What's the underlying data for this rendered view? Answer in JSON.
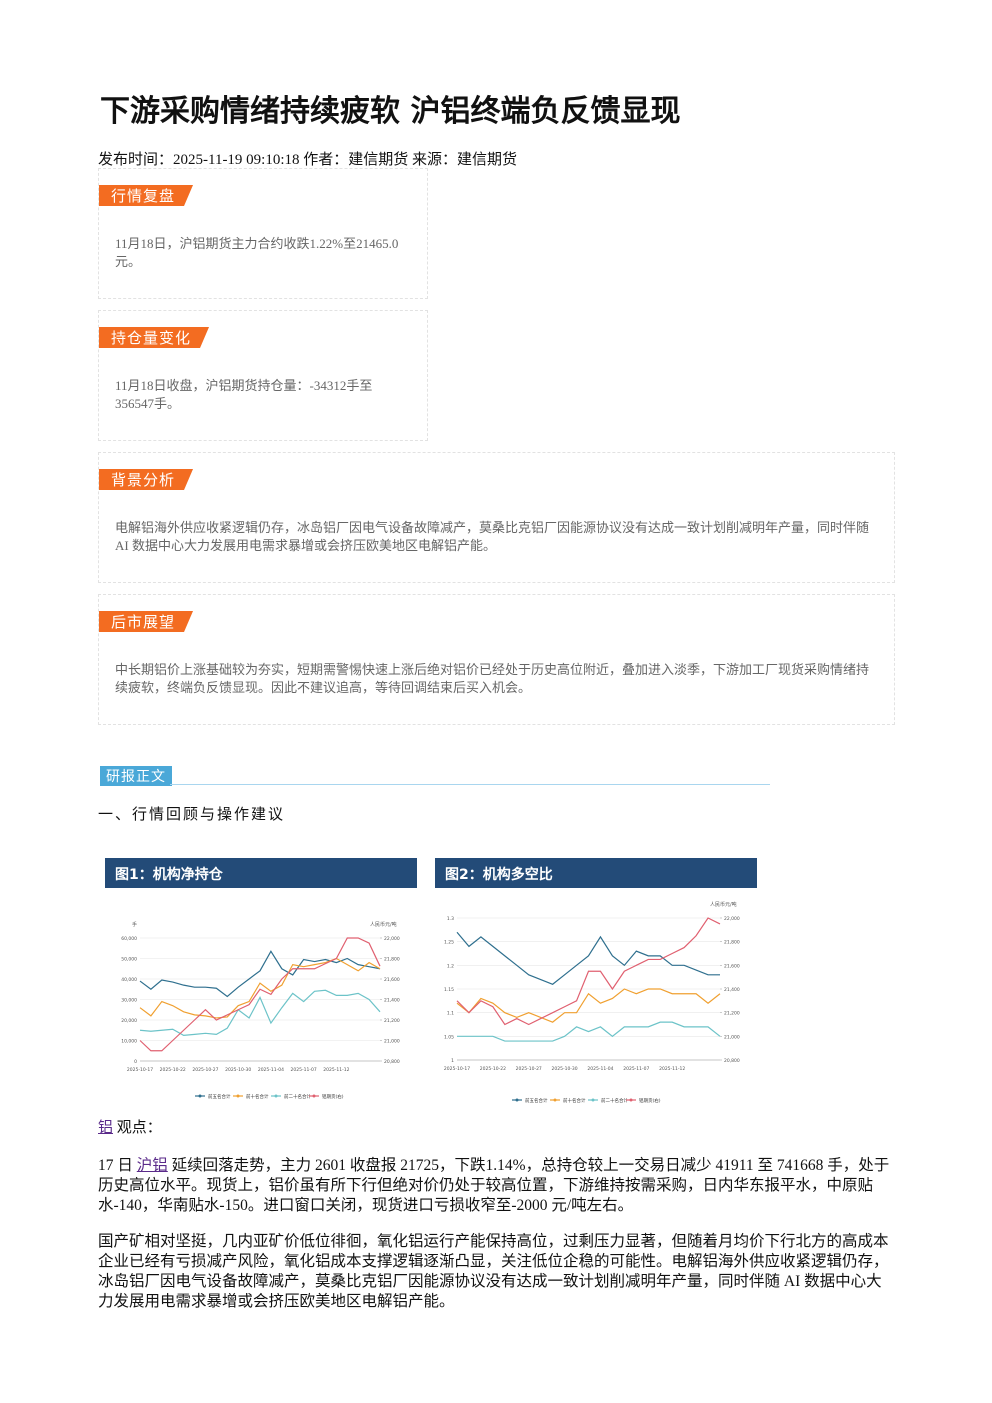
{
  "header": {
    "title": "下游采购情绪持续疲软 沪铝终端负反馈显现",
    "meta": "发布时间：2025-11-19 09:10:18 作者：建信期货 来源：建信期货"
  },
  "boxes": [
    {
      "tag": "行情复盘",
      "text": "11月18日，沪铝期货主力合约收跌1.22%至21465.0元。"
    },
    {
      "tag": "持仓量变化",
      "text": "11月18日收盘，沪铝期货持仓量：-34312手至356547手。"
    },
    {
      "tag": "背景分析",
      "text": "电解铝海外供应收紧逻辑仍存，冰岛铝厂因电气设备故障减产，莫桑比克铝厂因能源协议没有达成一致计划削减明年产量，同时伴随 AI 数据中心大力发展用电需求暴增或会挤压欧美地区电解铝产能。"
    },
    {
      "tag": "后市展望",
      "text": "中长期铝价上涨基础较为夯实，短期需警惕快速上涨后绝对铝价已经处于历史高位附近，叠加进入淡季，下游加工厂现货采购情绪持续疲软，终端负反馈显现。因此不建议追高，等待回调结束后买入机会。"
    }
  ],
  "body": {
    "tag": "研报正文",
    "heading": "一、行情回顾与操作建议"
  },
  "chart_data": [
    {
      "type": "line",
      "title": "图1：机构净持仓",
      "y_label": "手",
      "y2_label": "人民币元/吨",
      "categories": [
        "2025-10-17",
        null,
        null,
        "2025-10-22",
        null,
        null,
        "2025-10-27",
        null,
        null,
        "2025-10-30",
        null,
        null,
        "2025-11-04",
        null,
        null,
        "2025-11-07",
        null,
        null,
        "2025-11-12",
        null,
        null,
        null,
        null
      ],
      "ylim": [
        0,
        60000
      ],
      "yticks": [
        0,
        {
          "value": 10000,
          "label": "10,000"
        },
        {
          "value": 20000,
          "label": "20,000"
        },
        {
          "value": 30000,
          "label": "30,000"
        },
        {
          "value": 40000,
          "label": "40,000"
        },
        {
          "value": 50000,
          "label": "50,000"
        },
        {
          "value": 60000,
          "label": "60,000"
        }
      ],
      "y2lim": [
        20800,
        22000
      ],
      "y2ticks": [
        {
          "value": 20800,
          "label": "20,800"
        },
        {
          "value": 21000,
          "label": "21,000"
        },
        {
          "value": 21200,
          "label": "21,200"
        },
        {
          "value": 21400,
          "label": "21,400"
        },
        {
          "value": 21600,
          "label": "21,600"
        },
        {
          "value": 21800,
          "label": "21,800"
        },
        {
          "value": 22000,
          "label": "22,000"
        }
      ],
      "series": [
        {
          "name": "前五名合计",
          "color": "#2e6f8e",
          "values": [
            39000,
            35000,
            39500,
            38500,
            37000,
            36000,
            36000,
            35500,
            31500,
            36000,
            40000,
            44000,
            53500,
            45000,
            42000,
            49500,
            48500,
            49500,
            48000,
            50000,
            47000,
            46000,
            45000
          ]
        },
        {
          "name": "前十名合计",
          "color": "#f0a030",
          "values": [
            26000,
            22000,
            29000,
            27000,
            24000,
            22500,
            22000,
            21000,
            21500,
            27000,
            29000,
            38000,
            34000,
            37000,
            47000,
            46000,
            47000,
            48000,
            50000,
            47000,
            44000,
            48000,
            45000
          ]
        },
        {
          "name": "前二十名合计",
          "color": "#6cc3c8",
          "values": [
            15000,
            14500,
            15000,
            15500,
            12500,
            13000,
            13500,
            13000,
            16000,
            25000,
            21000,
            31000,
            18500,
            26000,
            33000,
            29000,
            34000,
            34500,
            32000,
            32000,
            33000,
            30000,
            24000
          ]
        },
        {
          "name": "铝期货(右)",
          "color": "#e06070",
          "axis": "y2",
          "values": [
            21000,
            20900,
            20900,
            21000,
            21100,
            21200,
            21300,
            21200,
            21250,
            21300,
            21350,
            21500,
            21450,
            21600,
            21700,
            21700,
            21700,
            21750,
            21800,
            22000,
            22000,
            21950,
            21725
          ]
        }
      ]
    },
    {
      "type": "line",
      "title": "图2：机构多空比",
      "y2_label": "人民币元/吨",
      "categories": [
        "2025-10-17",
        null,
        null,
        "2025-10-22",
        null,
        null,
        "2025-10-27",
        null,
        null,
        "2025-10-30",
        null,
        null,
        "2025-11-04",
        null,
        null,
        "2025-11-07",
        null,
        null,
        "2025-11-12",
        null,
        null,
        null,
        null
      ],
      "ylim": [
        1,
        1.3
      ],
      "yticks": [
        1,
        1.05,
        1.1,
        1.15,
        1.2,
        1.25,
        1.3
      ],
      "y2lim": [
        20800,
        22000
      ],
      "y2ticks": [
        {
          "value": 20800,
          "label": "20,800"
        },
        {
          "value": 21000,
          "label": "21,000"
        },
        {
          "value": 21200,
          "label": "21,200"
        },
        {
          "value": 21400,
          "label": "21,400"
        },
        {
          "value": 21600,
          "label": "21,600"
        },
        {
          "value": 21800,
          "label": "21,800"
        },
        {
          "value": 22000,
          "label": "22,000"
        }
      ],
      "series": [
        {
          "name": "前五名合计",
          "color": "#2e6f8e",
          "values": [
            1.27,
            1.24,
            1.26,
            1.24,
            1.22,
            1.2,
            1.18,
            1.17,
            1.16,
            1.18,
            1.2,
            1.22,
            1.26,
            1.22,
            1.2,
            1.23,
            1.22,
            1.22,
            1.2,
            1.2,
            1.19,
            1.18,
            1.18
          ]
        },
        {
          "name": "前十名合计",
          "color": "#f0a030",
          "values": [
            1.12,
            1.1,
            1.13,
            1.12,
            1.1,
            1.09,
            1.1,
            1.09,
            1.08,
            1.1,
            1.1,
            1.14,
            1.12,
            1.13,
            1.15,
            1.14,
            1.15,
            1.15,
            1.14,
            1.14,
            1.14,
            1.12,
            1.14
          ]
        },
        {
          "name": "前二十名合计",
          "color": "#6cc3c8",
          "values": [
            1.05,
            1.05,
            1.05,
            1.05,
            1.04,
            1.04,
            1.04,
            1.04,
            1.04,
            1.05,
            1.07,
            1.06,
            1.07,
            1.05,
            1.07,
            1.07,
            1.07,
            1.08,
            1.08,
            1.07,
            1.07,
            1.07,
            1.05
          ]
        },
        {
          "name": "铝期货(右)",
          "color": "#e06070",
          "axis": "y2",
          "values": [
            21300,
            21200,
            21300,
            21250,
            21100,
            21150,
            21100,
            21150,
            21200,
            21250,
            21300,
            21550,
            21550,
            21400,
            21550,
            21600,
            21650,
            21650,
            21700,
            21750,
            21850,
            22000,
            21950
          ]
        }
      ]
    }
  ],
  "view": {
    "link": "铝",
    "label": "观点："
  },
  "paragraphs": [
    {
      "before": "17 日 ",
      "link": "沪铝",
      "after": " 延续回落走势，主力 2601 收盘报 21725，下跌1.14%，总持仓较上一交易日减少 41911 至 741668 手，处于历史高位水平。现货上，铝价虽有所下行但绝对价仍处于较高位置，下游维持按需采购，日内华东报平水，中原贴水-140，华南贴水-150。进口窗口关闭，现货进口亏损收窄至-2000 元/吨左右。"
    },
    {
      "before": "国产矿相对坚挺，几内亚矿价低位徘徊，氧化铝运行产能保持高位，过剩压力显著，但随着月均价下行北方的高成本企业已经有亏损减产风险，氧化铝成本支撑逻辑逐渐凸显，关注低位企稳的可能性。电解铝海外供应收紧逻辑仍存，冰岛铝厂因电气设备故障减产，莫桑比克铝厂因能源协议没有达成一致计划削减明年产量，同时伴随 AI 数据中心大力发展用电需求暴增或会挤压欧美地区电解铝产能。"
    }
  ]
}
